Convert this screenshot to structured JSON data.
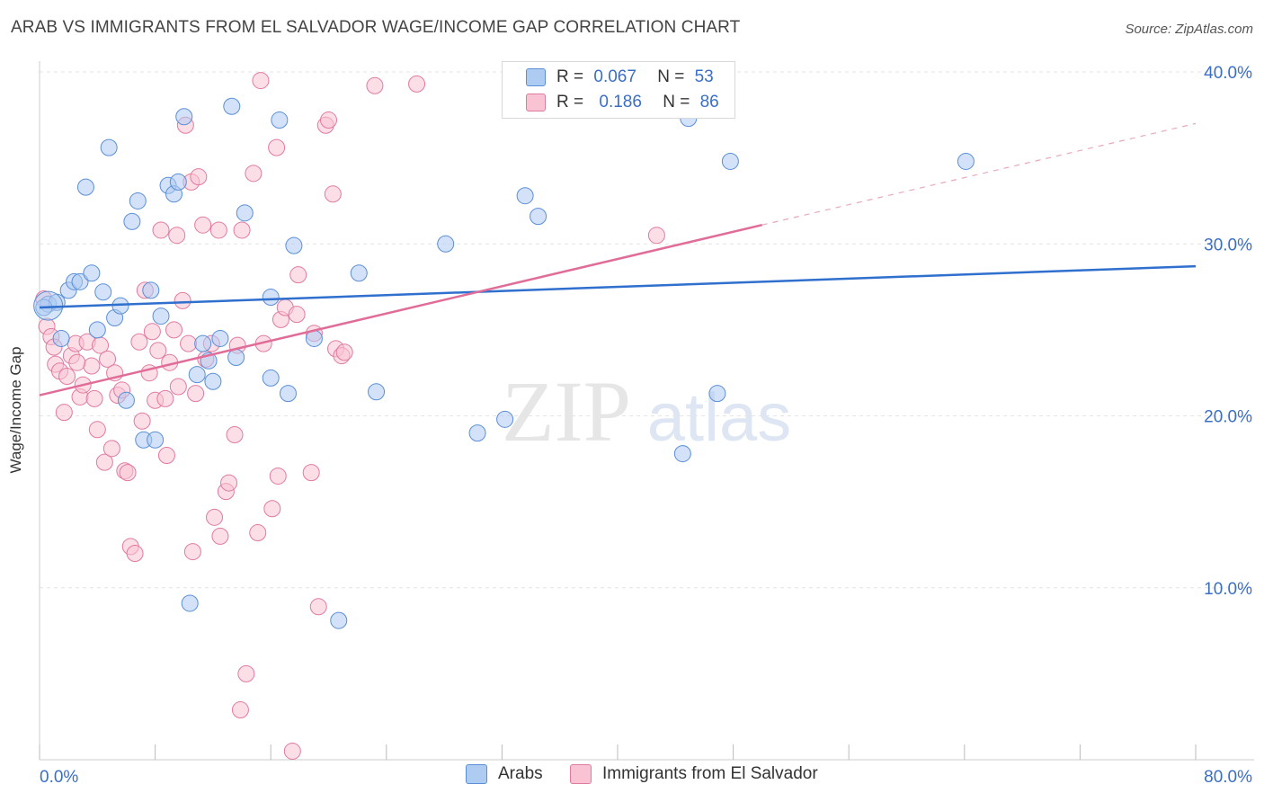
{
  "title": "ARAB VS IMMIGRANTS FROM EL SALVADOR WAGE/INCOME GAP CORRELATION CHART",
  "source": "Source: ZipAtlas.com",
  "watermark": {
    "zip": "ZIP",
    "atlas": "atlas"
  },
  "legend": {
    "r_label": "R =",
    "n_label": "N =",
    "series": [
      {
        "name": "Arabs",
        "r": "0.067",
        "n": "53",
        "fill": "#aecbf2",
        "stroke": "#5b8fd6"
      },
      {
        "name": "Immigrants from El Salvador",
        "r": "0.186",
        "n": "86",
        "fill": "#f9c3d4",
        "stroke": "#e07ba0"
      }
    ]
  },
  "chart_data": {
    "type": "scatter",
    "title": "ARAB VS IMMIGRANTS FROM EL SALVADOR WAGE/INCOME GAP CORRELATION CHART",
    "xlabel": "",
    "ylabel": "Wage/Income Gap",
    "xlim": [
      0,
      80
    ],
    "ylim": [
      0,
      40
    ],
    "x_tick_labels": [
      "0.0%",
      "80.0%"
    ],
    "y_tick_values": [
      10,
      20,
      30,
      40
    ],
    "y_tick_labels": [
      "10.0%",
      "20.0%",
      "30.0%",
      "40.0%"
    ],
    "grid": true,
    "legend_placement": "top-center",
    "series": [
      {
        "name": "Arabs",
        "color": "#5b8fd6",
        "fill": "#aecbf2",
        "points": [
          [
            0.6,
            26.5
          ],
          [
            1.2,
            26.6
          ],
          [
            1.5,
            24.5
          ],
          [
            2.0,
            27.3
          ],
          [
            2.4,
            27.8
          ],
          [
            2.8,
            27.8
          ],
          [
            3.2,
            33.3
          ],
          [
            3.6,
            28.3
          ],
          [
            4.0,
            25.0
          ],
          [
            4.4,
            27.2
          ],
          [
            4.8,
            35.6
          ],
          [
            5.2,
            25.7
          ],
          [
            5.6,
            26.4
          ],
          [
            6.0,
            20.9
          ],
          [
            6.4,
            31.3
          ],
          [
            6.8,
            32.5
          ],
          [
            7.2,
            18.6
          ],
          [
            7.7,
            27.3
          ],
          [
            8.0,
            18.6
          ],
          [
            8.4,
            25.8
          ],
          [
            8.9,
            33.4
          ],
          [
            9.3,
            32.9
          ],
          [
            9.6,
            33.6
          ],
          [
            10.0,
            37.4
          ],
          [
            10.4,
            9.1
          ],
          [
            10.9,
            22.4
          ],
          [
            11.3,
            24.2
          ],
          [
            11.7,
            23.2
          ],
          [
            12.0,
            22.0
          ],
          [
            12.5,
            24.5
          ],
          [
            13.3,
            38.0
          ],
          [
            13.6,
            23.4
          ],
          [
            14.2,
            31.8
          ],
          [
            16.0,
            22.2
          ],
          [
            16.0,
            26.9
          ],
          [
            16.6,
            37.2
          ],
          [
            17.2,
            21.3
          ],
          [
            17.6,
            29.9
          ],
          [
            19.0,
            24.5
          ],
          [
            20.7,
            8.1
          ],
          [
            22.1,
            28.3
          ],
          [
            23.3,
            21.4
          ],
          [
            28.1,
            30.0
          ],
          [
            30.3,
            19.0
          ],
          [
            32.2,
            19.8
          ],
          [
            33.6,
            32.8
          ],
          [
            34.5,
            31.6
          ],
          [
            44.5,
            17.8
          ],
          [
            44.9,
            37.3
          ],
          [
            46.9,
            21.3
          ],
          [
            47.8,
            34.8
          ],
          [
            64.1,
            34.8
          ],
          [
            0.3,
            26.3
          ]
        ]
      },
      {
        "name": "Immigrants from El Salvador",
        "color": "#e07ba0",
        "fill": "#f9c3d4",
        "points": [
          [
            0.3,
            26.8
          ],
          [
            0.5,
            25.2
          ],
          [
            0.8,
            24.6
          ],
          [
            1.1,
            23.0
          ],
          [
            1.4,
            22.6
          ],
          [
            1.7,
            20.2
          ],
          [
            1.9,
            22.3
          ],
          [
            2.2,
            23.5
          ],
          [
            2.5,
            24.2
          ],
          [
            2.8,
            21.1
          ],
          [
            3.0,
            21.8
          ],
          [
            3.3,
            24.3
          ],
          [
            3.6,
            22.9
          ],
          [
            3.8,
            21.0
          ],
          [
            4.0,
            19.2
          ],
          [
            4.2,
            24.1
          ],
          [
            4.5,
            17.3
          ],
          [
            4.7,
            23.3
          ],
          [
            5.0,
            18.1
          ],
          [
            5.2,
            22.5
          ],
          [
            5.4,
            21.2
          ],
          [
            5.7,
            21.5
          ],
          [
            5.9,
            16.8
          ],
          [
            6.1,
            16.7
          ],
          [
            6.3,
            12.4
          ],
          [
            6.6,
            12.0
          ],
          [
            6.9,
            24.3
          ],
          [
            7.1,
            19.7
          ],
          [
            7.3,
            27.3
          ],
          [
            7.6,
            22.5
          ],
          [
            7.8,
            24.9
          ],
          [
            8.0,
            20.9
          ],
          [
            8.2,
            23.8
          ],
          [
            8.4,
            30.8
          ],
          [
            8.7,
            21.0
          ],
          [
            8.8,
            17.7
          ],
          [
            9.0,
            23.1
          ],
          [
            9.3,
            25.0
          ],
          [
            9.5,
            30.5
          ],
          [
            9.6,
            21.7
          ],
          [
            9.9,
            26.7
          ],
          [
            10.1,
            36.9
          ],
          [
            10.3,
            24.2
          ],
          [
            10.5,
            33.6
          ],
          [
            10.6,
            12.1
          ],
          [
            10.8,
            21.3
          ],
          [
            11.0,
            33.9
          ],
          [
            11.3,
            31.1
          ],
          [
            11.5,
            23.3
          ],
          [
            11.9,
            24.2
          ],
          [
            12.1,
            14.1
          ],
          [
            12.4,
            30.8
          ],
          [
            12.5,
            13.0
          ],
          [
            12.9,
            15.6
          ],
          [
            13.1,
            16.1
          ],
          [
            13.5,
            18.9
          ],
          [
            13.7,
            24.1
          ],
          [
            13.9,
            2.9
          ],
          [
            14.0,
            30.8
          ],
          [
            14.3,
            5.0
          ],
          [
            14.8,
            34.1
          ],
          [
            15.1,
            13.2
          ],
          [
            15.3,
            39.5
          ],
          [
            15.5,
            24.2
          ],
          [
            16.1,
            14.6
          ],
          [
            16.4,
            35.6
          ],
          [
            16.5,
            16.5
          ],
          [
            16.7,
            25.6
          ],
          [
            17.0,
            26.3
          ],
          [
            17.5,
            0.5
          ],
          [
            17.8,
            25.9
          ],
          [
            17.9,
            28.2
          ],
          [
            18.8,
            16.7
          ],
          [
            19.0,
            24.8
          ],
          [
            19.3,
            8.9
          ],
          [
            19.8,
            36.9
          ],
          [
            20.0,
            37.2
          ],
          [
            20.3,
            32.9
          ],
          [
            20.5,
            23.9
          ],
          [
            20.9,
            23.5
          ],
          [
            21.1,
            23.7
          ],
          [
            23.2,
            39.2
          ],
          [
            26.1,
            39.3
          ],
          [
            42.7,
            30.5
          ],
          [
            1.0,
            24.0
          ],
          [
            2.6,
            23.1
          ]
        ]
      }
    ],
    "trendlines": [
      {
        "series": "Arabs",
        "from": [
          0,
          26.3
        ],
        "to": [
          80,
          28.7
        ],
        "dashed_from": null
      },
      {
        "series": "Immigrants from El Salvador",
        "from": [
          0,
          21.2
        ],
        "to": [
          50,
          31.1
        ],
        "dashed_to": [
          80,
          37.0
        ]
      }
    ]
  }
}
